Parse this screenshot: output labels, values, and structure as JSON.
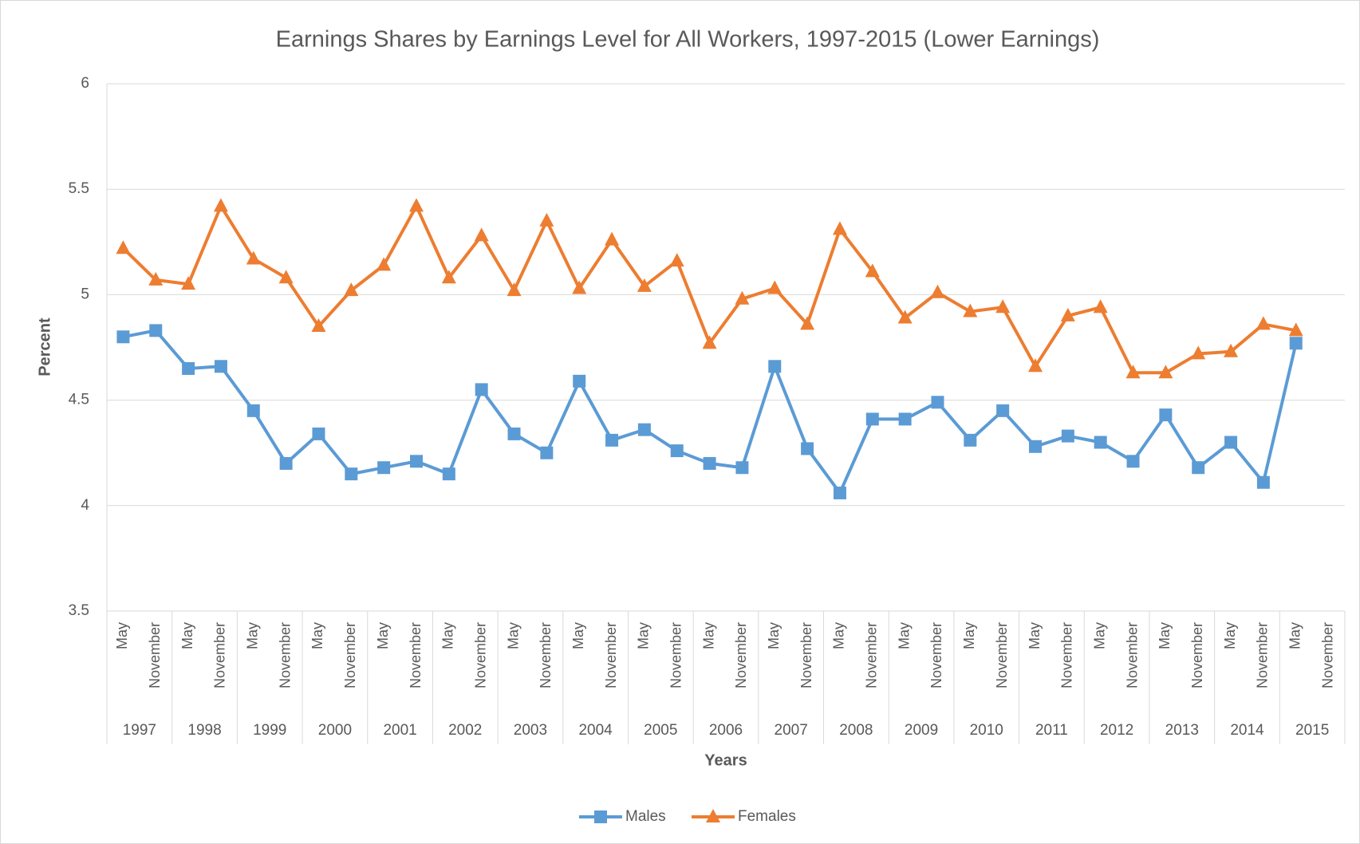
{
  "chart_data": {
    "type": "line",
    "title": "Earnings Shares by Earnings Level for All Workers, 1997-2015 (Lower Earnings)",
    "x_label": "Years",
    "y_label": "Percent",
    "categories": [
      "May",
      "November",
      "May",
      "November",
      "May",
      "November",
      "May",
      "November",
      "May",
      "November",
      "May",
      "November",
      "May",
      "November",
      "May",
      "November",
      "May",
      "November",
      "May",
      "November",
      "May",
      "November",
      "May",
      "November",
      "May",
      "November",
      "May",
      "November",
      "May",
      "November",
      "May",
      "November",
      "May",
      "November",
      "May",
      "November",
      "May",
      "November"
    ],
    "years": [
      "1997",
      "1998",
      "1999",
      "2000",
      "2001",
      "2002",
      "2003",
      "2004",
      "2005",
      "2006",
      "2007",
      "2008",
      "2009",
      "2010",
      "2011",
      "2012",
      "2013",
      "2014",
      "2015"
    ],
    "series": [
      {
        "name": "Males",
        "color": "#5b9bd5",
        "marker": "square",
        "values": [
          4.8,
          4.83,
          4.65,
          4.66,
          4.45,
          4.2,
          4.34,
          4.15,
          4.18,
          4.21,
          4.15,
          4.55,
          4.34,
          4.25,
          4.59,
          4.31,
          4.36,
          4.26,
          4.2,
          4.18,
          4.66,
          4.27,
          4.06,
          4.41,
          4.41,
          4.49,
          4.31,
          4.45,
          4.28,
          4.33,
          4.3,
          4.21,
          4.43,
          4.18,
          4.3,
          4.11,
          4.77,
          null
        ]
      },
      {
        "name": "Females",
        "color": "#ed7d31",
        "marker": "triangle",
        "values": [
          5.22,
          5.07,
          5.05,
          5.42,
          5.17,
          5.08,
          4.85,
          5.02,
          5.14,
          5.42,
          5.08,
          5.28,
          5.02,
          5.35,
          5.03,
          5.26,
          5.04,
          5.16,
          4.77,
          4.98,
          5.03,
          4.86,
          5.31,
          5.11,
          4.89,
          5.01,
          4.92,
          4.94,
          4.66,
          4.9,
          4.94,
          4.63,
          4.63,
          4.72,
          4.73,
          4.86,
          4.83,
          null
        ]
      }
    ],
    "ylim": [
      3.5,
      6
    ],
    "yticks": [
      3.5,
      4,
      4.5,
      5,
      5.5,
      6
    ],
    "grid": true,
    "legend": "bottom"
  }
}
